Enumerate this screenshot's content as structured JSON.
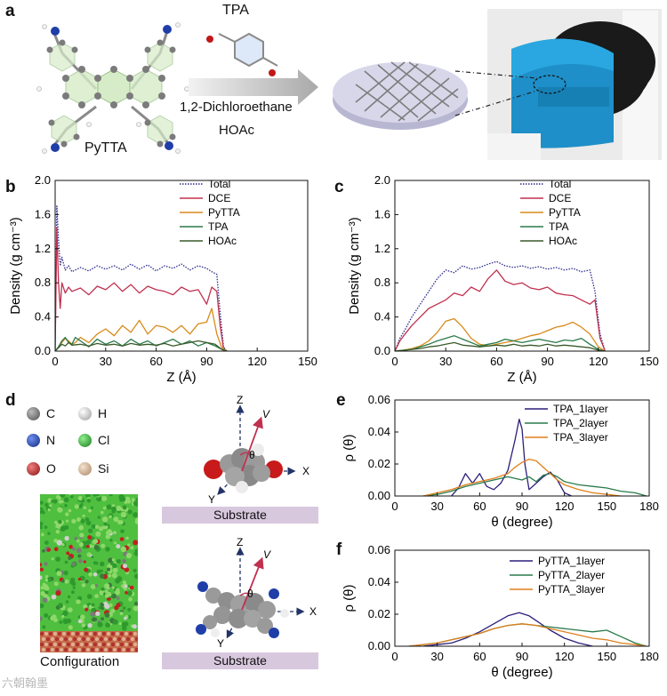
{
  "panels": {
    "a": "a",
    "b": "b",
    "c": "c",
    "d": "d",
    "e": "e",
    "f": "f"
  },
  "panel_a": {
    "reagent": "TPA",
    "molecule": "PyTTA",
    "solvent": "1,2-Dichloroethane",
    "acid": "HOAc"
  },
  "panel_d": {
    "legend": [
      {
        "symbol": "C",
        "color": "#6f6f6f"
      },
      {
        "symbol": "H",
        "color": "#e8e8e8"
      },
      {
        "symbol": "N",
        "color": "#1f3ea8"
      },
      {
        "symbol": "Cl",
        "color": "#2fa82f"
      },
      {
        "symbol": "O",
        "color": "#c01818"
      },
      {
        "symbol": "Si",
        "color": "#d9b89a"
      }
    ],
    "configuration_label": "Configuration",
    "substrate_label": "Substrate",
    "axes": {
      "z": "Z",
      "y": "Y",
      "x": "X",
      "v": "V",
      "theta": "θ"
    }
  },
  "watermark": "六朝翰墨",
  "colors": {
    "total": "#2b2a8c",
    "dce": "#c0304f",
    "pytta": "#d98a1a",
    "tpa": "#2a7a4a",
    "hoac": "#3a5a2a",
    "layer1": "#2b1f7a",
    "layer2": "#2a7a4a",
    "layer3": "#e07f1a"
  },
  "chart_data": [
    {
      "id": "b",
      "type": "line",
      "xlabel": "Z (Å)",
      "ylabel": "Density (g cm⁻³)",
      "xlim": [
        0,
        150
      ],
      "ylim": [
        0,
        2.0
      ],
      "xticks": [
        0,
        30,
        60,
        90,
        120,
        150
      ],
      "yticks": [
        0.0,
        0.4,
        0.8,
        1.2,
        1.6,
        2.0
      ],
      "legend": "top-right",
      "series": [
        {
          "name": "Total",
          "style": "dotted",
          "x": [
            0,
            1,
            2,
            3,
            4,
            6,
            8,
            10,
            15,
            20,
            25,
            30,
            35,
            40,
            45,
            50,
            55,
            60,
            65,
            70,
            75,
            80,
            85,
            90,
            93,
            96,
            98,
            100,
            102
          ],
          "values": [
            0,
            1.7,
            1.3,
            1.0,
            1.1,
            0.95,
            1.0,
            0.93,
            0.98,
            0.94,
            1.0,
            0.96,
            1.0,
            0.95,
            1.02,
            0.96,
            1.01,
            0.94,
            1.0,
            0.97,
            1.02,
            0.95,
            1.0,
            0.97,
            0.93,
            0.9,
            0.45,
            0.05,
            0.0
          ]
        },
        {
          "name": "DCE",
          "style": "solid",
          "x": [
            0,
            1,
            2,
            3,
            4,
            6,
            8,
            10,
            15,
            20,
            25,
            30,
            35,
            40,
            45,
            50,
            55,
            60,
            65,
            70,
            75,
            80,
            85,
            90,
            93,
            96,
            98,
            100,
            102
          ],
          "values": [
            0,
            1.45,
            0.8,
            0.5,
            0.8,
            0.68,
            0.75,
            0.7,
            0.74,
            0.66,
            0.76,
            0.72,
            0.8,
            0.7,
            0.78,
            0.68,
            0.76,
            0.72,
            0.7,
            0.66,
            0.75,
            0.7,
            0.72,
            0.55,
            0.75,
            0.7,
            0.3,
            0.03,
            0.0
          ]
        },
        {
          "name": "PyTTA",
          "style": "solid",
          "x": [
            0,
            2,
            4,
            6,
            8,
            10,
            12,
            15,
            20,
            25,
            30,
            35,
            40,
            45,
            50,
            55,
            60,
            65,
            70,
            75,
            80,
            85,
            90,
            93,
            96,
            99,
            102
          ],
          "values": [
            0,
            0.05,
            0.1,
            0.15,
            0.12,
            0.08,
            0.1,
            0.16,
            0.1,
            0.2,
            0.26,
            0.18,
            0.3,
            0.22,
            0.36,
            0.2,
            0.3,
            0.28,
            0.22,
            0.3,
            0.2,
            0.32,
            0.34,
            0.5,
            0.2,
            0.04,
            0.0
          ]
        },
        {
          "name": "TPA",
          "style": "solid",
          "x": [
            0,
            2,
            4,
            6,
            8,
            10,
            12,
            15,
            20,
            25,
            30,
            35,
            40,
            45,
            50,
            55,
            60,
            65,
            70,
            75,
            80,
            85,
            90,
            95,
            99,
            102
          ],
          "values": [
            0,
            0.05,
            0.12,
            0.16,
            0.1,
            0.08,
            0.16,
            0.12,
            0.05,
            0.14,
            0.08,
            0.12,
            0.06,
            0.14,
            0.08,
            0.12,
            0.06,
            0.1,
            0.14,
            0.08,
            0.12,
            0.06,
            0.1,
            0.06,
            0.02,
            0.0
          ]
        },
        {
          "name": "HOAc",
          "style": "solid",
          "x": [
            0,
            2,
            4,
            6,
            8,
            10,
            15,
            20,
            25,
            30,
            35,
            40,
            45,
            50,
            55,
            60,
            65,
            70,
            75,
            80,
            85,
            90,
            95,
            99,
            102
          ],
          "values": [
            0,
            0.04,
            0.08,
            0.06,
            0.1,
            0.07,
            0.08,
            0.06,
            0.09,
            0.07,
            0.08,
            0.06,
            0.09,
            0.07,
            0.08,
            0.07,
            0.09,
            0.06,
            0.08,
            0.1,
            0.12,
            0.1,
            0.08,
            0.02,
            0.0
          ]
        }
      ]
    },
    {
      "id": "c",
      "type": "line",
      "xlabel": "Z (Å)",
      "ylabel": "Density (g cm⁻³)",
      "xlim": [
        0,
        150
      ],
      "ylim": [
        0,
        2.0
      ],
      "xticks": [
        0,
        30,
        60,
        90,
        120,
        150
      ],
      "yticks": [
        0.0,
        0.4,
        0.8,
        1.2,
        1.6,
        2.0
      ],
      "legend": "top-right",
      "series": [
        {
          "name": "Total",
          "style": "dotted",
          "x": [
            0,
            3,
            6,
            10,
            15,
            20,
            25,
            30,
            35,
            40,
            45,
            50,
            55,
            60,
            65,
            70,
            75,
            80,
            85,
            90,
            95,
            100,
            105,
            110,
            115,
            118,
            121,
            124
          ],
          "values": [
            0,
            0.15,
            0.25,
            0.4,
            0.55,
            0.7,
            0.85,
            0.95,
            0.92,
            1.0,
            0.96,
            0.98,
            1.02,
            1.05,
            1.0,
            0.98,
            1.0,
            0.97,
            0.99,
            0.96,
            0.98,
            0.95,
            0.97,
            0.93,
            0.95,
            0.7,
            0.2,
            0.0
          ]
        },
        {
          "name": "DCE",
          "style": "solid",
          "x": [
            0,
            3,
            6,
            10,
            15,
            20,
            25,
            30,
            35,
            40,
            45,
            50,
            55,
            60,
            65,
            70,
            75,
            80,
            85,
            90,
            95,
            100,
            105,
            110,
            115,
            118,
            121,
            124
          ],
          "values": [
            0,
            0.12,
            0.2,
            0.3,
            0.4,
            0.5,
            0.55,
            0.6,
            0.68,
            0.65,
            0.75,
            0.7,
            0.85,
            0.95,
            0.82,
            0.78,
            0.8,
            0.74,
            0.72,
            0.75,
            0.68,
            0.66,
            0.65,
            0.6,
            0.55,
            0.6,
            0.15,
            0.0
          ]
        },
        {
          "name": "PyTTA",
          "style": "solid",
          "x": [
            0,
            5,
            10,
            15,
            20,
            25,
            30,
            35,
            40,
            45,
            50,
            55,
            60,
            65,
            70,
            75,
            80,
            85,
            90,
            95,
            100,
            105,
            110,
            115,
            120,
            124
          ],
          "values": [
            0,
            0.01,
            0.03,
            0.06,
            0.12,
            0.22,
            0.35,
            0.38,
            0.28,
            0.15,
            0.08,
            0.06,
            0.08,
            0.1,
            0.12,
            0.15,
            0.18,
            0.2,
            0.24,
            0.28,
            0.3,
            0.34,
            0.28,
            0.2,
            0.05,
            0.0
          ]
        },
        {
          "name": "TPA",
          "style": "solid",
          "x": [
            0,
            5,
            10,
            15,
            20,
            25,
            30,
            35,
            40,
            45,
            50,
            55,
            60,
            65,
            70,
            75,
            80,
            85,
            90,
            95,
            100,
            105,
            110,
            115,
            120,
            124
          ],
          "values": [
            0,
            0.01,
            0.02,
            0.05,
            0.08,
            0.12,
            0.15,
            0.18,
            0.14,
            0.1,
            0.06,
            0.08,
            0.1,
            0.14,
            0.12,
            0.1,
            0.12,
            0.14,
            0.12,
            0.1,
            0.13,
            0.12,
            0.15,
            0.08,
            0.02,
            0.0
          ]
        },
        {
          "name": "HOAc",
          "style": "solid",
          "x": [
            0,
            5,
            10,
            15,
            20,
            25,
            30,
            35,
            40,
            45,
            50,
            55,
            60,
            65,
            70,
            75,
            80,
            85,
            90,
            95,
            100,
            105,
            110,
            115,
            120,
            124
          ],
          "values": [
            0,
            0.01,
            0.02,
            0.03,
            0.05,
            0.06,
            0.08,
            0.1,
            0.07,
            0.06,
            0.05,
            0.06,
            0.07,
            0.06,
            0.08,
            0.06,
            0.07,
            0.06,
            0.08,
            0.06,
            0.07,
            0.06,
            0.05,
            0.04,
            0.01,
            0.0
          ]
        }
      ]
    },
    {
      "id": "e",
      "type": "line",
      "xlabel": "θ (degree)",
      "ylabel": "ρ (θ)",
      "xlim": [
        0,
        180
      ],
      "ylim": [
        0,
        0.06
      ],
      "xticks": [
        0,
        30,
        60,
        90,
        120,
        150,
        180
      ],
      "yticks": [
        0.0,
        0.02,
        0.04,
        0.06
      ],
      "legend": "top-right",
      "series": [
        {
          "name": "TPA_1layer",
          "x": [
            40,
            45,
            50,
            55,
            60,
            65,
            70,
            75,
            80,
            85,
            88,
            90,
            92,
            95,
            100,
            105,
            110,
            115,
            120,
            125
          ],
          "values": [
            0,
            0.005,
            0.014,
            0.008,
            0.014,
            0.006,
            0.004,
            0.008,
            0.016,
            0.035,
            0.048,
            0.042,
            0.02,
            0.004,
            0.008,
            0.012,
            0.015,
            0.01,
            0.002,
            0.0
          ]
        },
        {
          "name": "TPA_2layer",
          "x": [
            20,
            30,
            40,
            50,
            60,
            70,
            80,
            90,
            95,
            100,
            105,
            110,
            115,
            120,
            130,
            140,
            150,
            160,
            170,
            178
          ],
          "values": [
            0,
            0.001,
            0.003,
            0.006,
            0.008,
            0.01,
            0.012,
            0.01,
            0.012,
            0.009,
            0.013,
            0.014,
            0.012,
            0.009,
            0.007,
            0.006,
            0.005,
            0.003,
            0.002,
            0.0
          ]
        },
        {
          "name": "TPA_3layer",
          "x": [
            20,
            30,
            40,
            50,
            60,
            70,
            80,
            85,
            90,
            95,
            100,
            105,
            110,
            115,
            120,
            130,
            140,
            150,
            160
          ],
          "values": [
            0,
            0.002,
            0.004,
            0.007,
            0.009,
            0.011,
            0.014,
            0.018,
            0.021,
            0.023,
            0.022,
            0.018,
            0.014,
            0.01,
            0.007,
            0.004,
            0.002,
            0.001,
            0.0
          ]
        }
      ]
    },
    {
      "id": "f",
      "type": "line",
      "xlabel": "θ (degree)",
      "ylabel": "ρ (θ)",
      "xlim": [
        0,
        180
      ],
      "ylim": [
        0,
        0.06
      ],
      "xticks": [
        0,
        30,
        60,
        90,
        120,
        150,
        180
      ],
      "yticks": [
        0.0,
        0.02,
        0.04,
        0.06
      ],
      "legend": "top-right",
      "series": [
        {
          "name": "PyTTA_1layer",
          "x": [
            20,
            30,
            40,
            50,
            60,
            70,
            80,
            88,
            95,
            100,
            110,
            120,
            130,
            140
          ],
          "values": [
            0,
            0.001,
            0.002,
            0.005,
            0.009,
            0.014,
            0.019,
            0.021,
            0.019,
            0.016,
            0.01,
            0.005,
            0.002,
            0.0
          ]
        },
        {
          "name": "PyTTA_2layer",
          "x": [
            10,
            20,
            30,
            40,
            50,
            60,
            70,
            80,
            90,
            100,
            110,
            120,
            130,
            140,
            150,
            160,
            170,
            178
          ],
          "values": [
            0,
            0.001,
            0.002,
            0.004,
            0.006,
            0.008,
            0.011,
            0.013,
            0.014,
            0.013,
            0.012,
            0.011,
            0.01,
            0.009,
            0.01,
            0.006,
            0.002,
            0.0
          ]
        },
        {
          "name": "PyTTA_3layer",
          "x": [
            10,
            20,
            30,
            40,
            50,
            60,
            70,
            80,
            90,
            100,
            110,
            120,
            130,
            140,
            150,
            160,
            170,
            178
          ],
          "values": [
            0,
            0.001,
            0.002,
            0.004,
            0.006,
            0.008,
            0.011,
            0.013,
            0.014,
            0.013,
            0.011,
            0.009,
            0.007,
            0.005,
            0.004,
            0.002,
            0.001,
            0.0
          ]
        }
      ]
    }
  ]
}
